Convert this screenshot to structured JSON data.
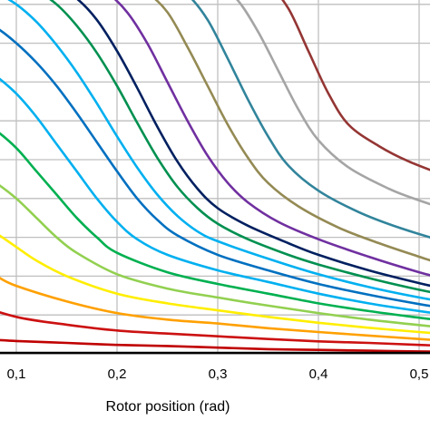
{
  "chart_data": {
    "type": "line",
    "title": "",
    "xlabel": "Rotor position (rad)",
    "ylabel": "",
    "xlim": [
      0.0,
      0.53
    ],
    "ylim": [
      0,
      10
    ],
    "x_ticks": [
      0.1,
      0.2,
      0.3,
      0.4,
      0.5
    ],
    "x_tick_labels": [
      "0,1",
      "0,2",
      "0,3",
      "0,4",
      "0,5"
    ],
    "y_gridlines": [
      1,
      2,
      3,
      4,
      5,
      6,
      7,
      8,
      9
    ],
    "grid": true,
    "legend": "none",
    "series": [
      {
        "color": "#c00000",
        "points": [
          [
            0,
            0.45
          ],
          [
            0.05,
            0.4
          ],
          [
            0.1,
            0.33
          ],
          [
            0.15,
            0.28
          ],
          [
            0.2,
            0.23
          ],
          [
            0.25,
            0.2
          ],
          [
            0.3,
            0.16
          ],
          [
            0.35,
            0.12
          ],
          [
            0.4,
            0.1
          ],
          [
            0.45,
            0.08
          ],
          [
            0.5,
            0.06
          ],
          [
            0.53,
            0.05
          ]
        ]
      },
      {
        "color": "#cc1111",
        "points": [
          [
            0,
            1.7
          ],
          [
            0.02,
            1.6
          ],
          [
            0.05,
            1.35
          ],
          [
            0.1,
            0.95
          ],
          [
            0.15,
            0.75
          ],
          [
            0.2,
            0.6
          ],
          [
            0.25,
            0.52
          ],
          [
            0.3,
            0.45
          ],
          [
            0.35,
            0.38
          ],
          [
            0.4,
            0.32
          ],
          [
            0.45,
            0.28
          ],
          [
            0.5,
            0.23
          ],
          [
            0.53,
            0.2
          ]
        ]
      },
      {
        "color": "#ffa000",
        "points": [
          [
            0,
            3.0
          ],
          [
            0.02,
            2.85
          ],
          [
            0.05,
            2.4
          ],
          [
            0.08,
            2.0
          ],
          [
            0.1,
            1.75
          ],
          [
            0.15,
            1.35
          ],
          [
            0.2,
            1.05
          ],
          [
            0.25,
            0.88
          ],
          [
            0.3,
            0.78
          ],
          [
            0.35,
            0.66
          ],
          [
            0.4,
            0.56
          ],
          [
            0.45,
            0.47
          ],
          [
            0.5,
            0.38
          ],
          [
            0.53,
            0.33
          ]
        ]
      },
      {
        "color": "#ffee00",
        "points": [
          [
            0,
            4.1
          ],
          [
            0.02,
            3.95
          ],
          [
            0.05,
            3.55
          ],
          [
            0.08,
            3.1
          ],
          [
            0.1,
            2.75
          ],
          [
            0.12,
            2.4
          ],
          [
            0.15,
            2.0
          ],
          [
            0.2,
            1.55
          ],
          [
            0.25,
            1.3
          ],
          [
            0.3,
            1.12
          ],
          [
            0.35,
            0.95
          ],
          [
            0.4,
            0.8
          ],
          [
            0.45,
            0.67
          ],
          [
            0.5,
            0.56
          ],
          [
            0.53,
            0.5
          ]
        ]
      },
      {
        "color": "#92d050",
        "points": [
          [
            0,
            5.4
          ],
          [
            0.02,
            5.3
          ],
          [
            0.05,
            4.9
          ],
          [
            0.08,
            4.4
          ],
          [
            0.1,
            4.0
          ],
          [
            0.12,
            3.5
          ],
          [
            0.14,
            3.0
          ],
          [
            0.16,
            2.6
          ],
          [
            0.2,
            2.05
          ],
          [
            0.25,
            1.68
          ],
          [
            0.3,
            1.45
          ],
          [
            0.35,
            1.24
          ],
          [
            0.4,
            1.05
          ],
          [
            0.45,
            0.88
          ],
          [
            0.5,
            0.74
          ],
          [
            0.53,
            0.66
          ]
        ]
      },
      {
        "color": "#00b050",
        "points": [
          [
            0,
            6.7
          ],
          [
            0.02,
            6.65
          ],
          [
            0.05,
            6.3
          ],
          [
            0.08,
            5.75
          ],
          [
            0.1,
            5.3
          ],
          [
            0.12,
            4.7
          ],
          [
            0.14,
            4.1
          ],
          [
            0.16,
            3.5
          ],
          [
            0.18,
            3.0
          ],
          [
            0.2,
            2.6
          ],
          [
            0.25,
            2.1
          ],
          [
            0.3,
            1.8
          ],
          [
            0.35,
            1.55
          ],
          [
            0.4,
            1.3
          ],
          [
            0.45,
            1.1
          ],
          [
            0.5,
            0.93
          ],
          [
            0.53,
            0.84
          ]
        ]
      },
      {
        "color": "#00b0f0",
        "points": [
          [
            0,
            8.2
          ],
          [
            0.02,
            8.1
          ],
          [
            0.05,
            7.7
          ],
          [
            0.08,
            7.15
          ],
          [
            0.1,
            6.7
          ],
          [
            0.12,
            6.1
          ],
          [
            0.14,
            5.4
          ],
          [
            0.16,
            4.7
          ],
          [
            0.18,
            4.0
          ],
          [
            0.2,
            3.4
          ],
          [
            0.22,
            2.95
          ],
          [
            0.25,
            2.55
          ],
          [
            0.3,
            2.15
          ],
          [
            0.35,
            1.85
          ],
          [
            0.4,
            1.55
          ],
          [
            0.45,
            1.3
          ],
          [
            0.5,
            1.1
          ],
          [
            0.53,
            1.0
          ]
        ]
      },
      {
        "color": "#0070c0",
        "points": [
          [
            0,
            9.05
          ],
          [
            0.02,
            9.0
          ],
          [
            0.05,
            8.8
          ],
          [
            0.08,
            8.4
          ],
          [
            0.1,
            8.0
          ],
          [
            0.12,
            7.5
          ],
          [
            0.14,
            6.9
          ],
          [
            0.16,
            6.2
          ],
          [
            0.18,
            5.45
          ],
          [
            0.2,
            4.7
          ],
          [
            0.22,
            4.0
          ],
          [
            0.24,
            3.45
          ],
          [
            0.26,
            3.05
          ],
          [
            0.3,
            2.55
          ],
          [
            0.35,
            2.15
          ],
          [
            0.4,
            1.8
          ],
          [
            0.45,
            1.52
          ],
          [
            0.5,
            1.28
          ],
          [
            0.53,
            1.16
          ]
        ]
      },
      {
        "color": "#00b0f0",
        "points": [
          [
            0,
            9.6
          ],
          [
            0.02,
            9.6
          ],
          [
            0.04,
            9.58
          ],
          [
            0.06,
            9.5
          ],
          [
            0.08,
            9.3
          ],
          [
            0.1,
            9.0
          ],
          [
            0.12,
            8.55
          ],
          [
            0.14,
            7.95
          ],
          [
            0.16,
            7.25
          ],
          [
            0.18,
            6.45
          ],
          [
            0.2,
            5.6
          ],
          [
            0.22,
            4.8
          ],
          [
            0.24,
            4.1
          ],
          [
            0.26,
            3.55
          ],
          [
            0.28,
            3.15
          ],
          [
            0.3,
            2.9
          ],
          [
            0.35,
            2.45
          ],
          [
            0.4,
            2.05
          ],
          [
            0.45,
            1.72
          ],
          [
            0.5,
            1.45
          ],
          [
            0.53,
            1.32
          ]
        ]
      },
      {
        "color": "#009050",
        "points": [
          [
            0,
            9.6
          ],
          [
            0.04,
            9.6
          ],
          [
            0.08,
            9.6
          ],
          [
            0.1,
            9.55
          ],
          [
            0.12,
            9.35
          ],
          [
            0.14,
            9.0
          ],
          [
            0.16,
            8.45
          ],
          [
            0.18,
            7.75
          ],
          [
            0.2,
            6.9
          ],
          [
            0.22,
            5.95
          ],
          [
            0.24,
            5.05
          ],
          [
            0.26,
            4.3
          ],
          [
            0.28,
            3.75
          ],
          [
            0.3,
            3.35
          ],
          [
            0.33,
            2.95
          ],
          [
            0.37,
            2.55
          ],
          [
            0.4,
            2.3
          ],
          [
            0.45,
            1.95
          ],
          [
            0.5,
            1.65
          ],
          [
            0.53,
            1.5
          ]
        ]
      },
      {
        "color": "#002060",
        "points": [
          [
            0,
            9.6
          ],
          [
            0.05,
            9.6
          ],
          [
            0.1,
            9.6
          ],
          [
            0.12,
            9.58
          ],
          [
            0.14,
            9.45
          ],
          [
            0.16,
            9.15
          ],
          [
            0.18,
            8.6
          ],
          [
            0.2,
            7.8
          ],
          [
            0.22,
            6.85
          ],
          [
            0.24,
            5.85
          ],
          [
            0.26,
            4.95
          ],
          [
            0.28,
            4.25
          ],
          [
            0.3,
            3.75
          ],
          [
            0.33,
            3.3
          ],
          [
            0.37,
            2.85
          ],
          [
            0.4,
            2.55
          ],
          [
            0.45,
            2.15
          ],
          [
            0.5,
            1.82
          ],
          [
            0.53,
            1.65
          ]
        ]
      },
      {
        "color": "#7030a0",
        "points": [
          [
            0,
            9.6
          ],
          [
            0.1,
            9.6
          ],
          [
            0.15,
            9.6
          ],
          [
            0.17,
            9.55
          ],
          [
            0.19,
            9.3
          ],
          [
            0.21,
            8.8
          ],
          [
            0.23,
            8.0
          ],
          [
            0.25,
            7.0
          ],
          [
            0.27,
            6.0
          ],
          [
            0.29,
            5.1
          ],
          [
            0.31,
            4.4
          ],
          [
            0.33,
            3.9
          ],
          [
            0.36,
            3.4
          ],
          [
            0.4,
            2.95
          ],
          [
            0.45,
            2.5
          ],
          [
            0.5,
            2.1
          ],
          [
            0.53,
            1.9
          ]
        ]
      },
      {
        "color": "#948a54",
        "points": [
          [
            0,
            9.6
          ],
          [
            0.15,
            9.6
          ],
          [
            0.19,
            9.6
          ],
          [
            0.21,
            9.55
          ],
          [
            0.23,
            9.3
          ],
          [
            0.25,
            8.8
          ],
          [
            0.27,
            7.9
          ],
          [
            0.29,
            6.9
          ],
          [
            0.31,
            5.9
          ],
          [
            0.33,
            5.05
          ],
          [
            0.35,
            4.4
          ],
          [
            0.38,
            3.8
          ],
          [
            0.42,
            3.25
          ],
          [
            0.46,
            2.85
          ],
          [
            0.5,
            2.5
          ],
          [
            0.53,
            2.25
          ]
        ]
      },
      {
        "color": "#31849b",
        "points": [
          [
            0,
            9.6
          ],
          [
            0.2,
            9.6
          ],
          [
            0.23,
            9.6
          ],
          [
            0.25,
            9.55
          ],
          [
            0.27,
            9.25
          ],
          [
            0.29,
            8.6
          ],
          [
            0.31,
            7.6
          ],
          [
            0.33,
            6.55
          ],
          [
            0.35,
            5.6
          ],
          [
            0.37,
            4.85
          ],
          [
            0.4,
            4.2
          ],
          [
            0.44,
            3.65
          ],
          [
            0.48,
            3.25
          ],
          [
            0.53,
            2.85
          ]
        ]
      },
      {
        "color": "#a5a5a5",
        "points": [
          [
            0,
            9.6
          ],
          [
            0.25,
            9.6
          ],
          [
            0.28,
            9.6
          ],
          [
            0.3,
            9.5
          ],
          [
            0.32,
            9.1
          ],
          [
            0.34,
            8.3
          ],
          [
            0.36,
            7.3
          ],
          [
            0.38,
            6.3
          ],
          [
            0.4,
            5.5
          ],
          [
            0.43,
            4.8
          ],
          [
            0.47,
            4.25
          ],
          [
            0.5,
            3.95
          ],
          [
            0.53,
            3.7
          ]
        ]
      },
      {
        "color": "#943634",
        "points": [
          [
            0,
            9.6
          ],
          [
            0.3,
            9.6
          ],
          [
            0.33,
            9.6
          ],
          [
            0.35,
            9.5
          ],
          [
            0.37,
            8.9
          ],
          [
            0.39,
            7.8
          ],
          [
            0.41,
            6.7
          ],
          [
            0.43,
            5.9
          ],
          [
            0.46,
            5.35
          ],
          [
            0.49,
            4.95
          ],
          [
            0.53,
            4.55
          ]
        ]
      },
      {
        "color": "#000000",
        "points": [
          [
            0,
            0.02
          ],
          [
            0.53,
            0.02
          ]
        ]
      }
    ]
  }
}
